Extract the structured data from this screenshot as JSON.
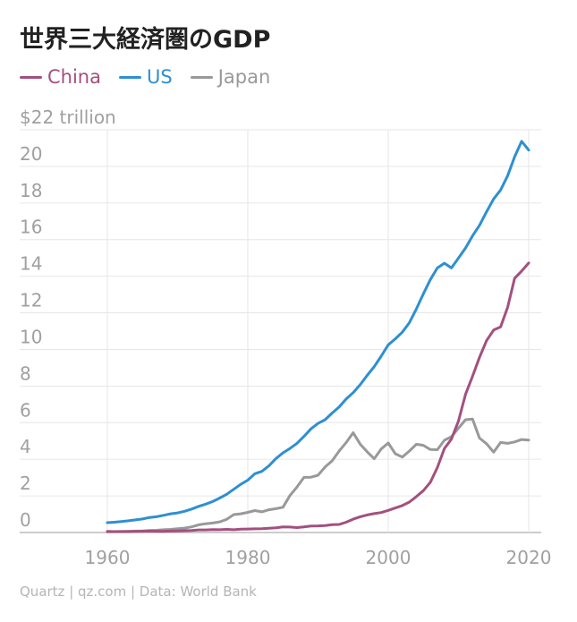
{
  "title": "世界三大経済圏のGDP",
  "footer": "Quartz | qz.com | Data: World Bank",
  "chart_data": {
    "type": "line",
    "title": "世界三大経済圏のGDP",
    "ylabel": "$22 trillion",
    "xlim": [
      1952,
      2022
    ],
    "ylim": [
      0,
      22
    ],
    "x_ticks": [
      "1960",
      "1980",
      "2000",
      "2020"
    ],
    "y_ticks": [
      "0",
      "2",
      "4",
      "6",
      "8",
      "10",
      "12",
      "14",
      "16",
      "18",
      "20",
      "$22 trillion"
    ],
    "grid": true,
    "legend_position": "top-left",
    "x": [
      1960,
      1961,
      1962,
      1963,
      1964,
      1965,
      1966,
      1967,
      1968,
      1969,
      1970,
      1971,
      1972,
      1973,
      1974,
      1975,
      1976,
      1977,
      1978,
      1979,
      1980,
      1981,
      1982,
      1983,
      1984,
      1985,
      1986,
      1987,
      1988,
      1989,
      1990,
      1991,
      1992,
      1993,
      1994,
      1995,
      1996,
      1997,
      1998,
      1999,
      2000,
      2001,
      2002,
      2003,
      2004,
      2005,
      2006,
      2007,
      2008,
      2009,
      2010,
      2011,
      2012,
      2013,
      2014,
      2015,
      2016,
      2017,
      2018,
      2019,
      2020
    ],
    "series": [
      {
        "name": "China",
        "color": "#a3507f",
        "values": [
          0.06,
          0.05,
          0.05,
          0.05,
          0.06,
          0.07,
          0.08,
          0.07,
          0.07,
          0.08,
          0.09,
          0.1,
          0.11,
          0.14,
          0.14,
          0.16,
          0.15,
          0.17,
          0.15,
          0.18,
          0.19,
          0.2,
          0.21,
          0.23,
          0.26,
          0.31,
          0.3,
          0.27,
          0.31,
          0.35,
          0.36,
          0.38,
          0.43,
          0.44,
          0.56,
          0.73,
          0.86,
          0.96,
          1.03,
          1.09,
          1.21,
          1.34,
          1.47,
          1.66,
          1.96,
          2.29,
          2.75,
          3.55,
          4.59,
          5.1,
          6.09,
          7.55,
          8.53,
          9.57,
          10.48,
          11.06,
          11.23,
          12.31,
          13.89,
          14.28,
          14.72
        ]
      },
      {
        "name": "US",
        "color": "#2e8fd2",
        "values": [
          0.54,
          0.56,
          0.6,
          0.64,
          0.69,
          0.74,
          0.82,
          0.86,
          0.94,
          1.02,
          1.07,
          1.16,
          1.28,
          1.43,
          1.55,
          1.69,
          1.88,
          2.09,
          2.36,
          2.63,
          2.86,
          3.21,
          3.34,
          3.64,
          4.04,
          4.35,
          4.59,
          4.87,
          5.25,
          5.66,
          5.96,
          6.16,
          6.52,
          6.86,
          7.29,
          7.64,
          8.07,
          8.58,
          9.06,
          9.63,
          10.25,
          10.58,
          10.94,
          11.46,
          12.21,
          13.04,
          13.82,
          14.45,
          14.71,
          14.45,
          14.99,
          15.54,
          16.2,
          16.78,
          17.52,
          18.22,
          18.71,
          19.49,
          20.53,
          21.37,
          20.89
        ]
      },
      {
        "name": "Japan",
        "color": "#999999",
        "values": [
          0.04,
          0.05,
          0.06,
          0.07,
          0.08,
          0.09,
          0.11,
          0.12,
          0.15,
          0.17,
          0.21,
          0.24,
          0.31,
          0.42,
          0.48,
          0.52,
          0.58,
          0.72,
          0.98,
          1.02,
          1.1,
          1.2,
          1.13,
          1.24,
          1.3,
          1.38,
          2.02,
          2.48,
          3.01,
          3.02,
          3.13,
          3.58,
          3.91,
          4.45,
          4.91,
          5.45,
          4.83,
          4.41,
          4.03,
          4.56,
          4.89,
          4.3,
          4.12,
          4.45,
          4.82,
          4.76,
          4.53,
          4.52,
          5.04,
          5.23,
          5.7,
          6.16,
          6.2,
          5.16,
          4.85,
          4.39,
          4.92,
          4.87,
          4.95,
          5.08,
          5.05
        ]
      }
    ]
  }
}
